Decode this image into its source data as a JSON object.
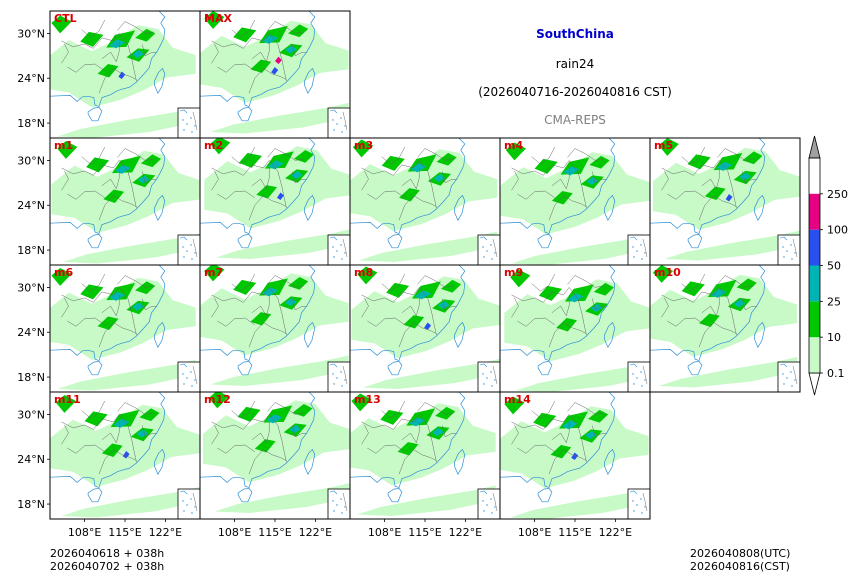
{
  "header": {
    "region": "SouthChina",
    "variable": "rain24",
    "period": "(2026040716-2026040816 CST)",
    "source": "CMA-REPS"
  },
  "panels": [
    "CTL",
    "MAX",
    "m1",
    "m2",
    "m3",
    "m4",
    "m5",
    "m6",
    "m7",
    "m8",
    "m9",
    "m10",
    "m11",
    "m12",
    "m13",
    "m14"
  ],
  "footer": {
    "init_utc": "2026040618  +  038h",
    "init_cst": "2026040702  +  038h",
    "valid_utc": "2026040808(UTC)",
    "valid_cst": "2026040816(CST)"
  },
  "chart_data": {
    "type": "heatmap",
    "title": "SouthChina rain24 (2026040716-2026040816 CST)",
    "x_ticks": [
      "108°E",
      "115°E",
      "122°E"
    ],
    "y_ticks": [
      "30°N",
      "24°N",
      "18°N"
    ],
    "x_range": [
      102,
      128
    ],
    "y_range": [
      16,
      33
    ],
    "colorbar": {
      "levels": [
        "0.1",
        "10",
        "25",
        "50",
        "100",
        "250"
      ],
      "colors": [
        "#c8fac8",
        "#00c800",
        "#00b4b4",
        "#2850f0",
        "#e60082"
      ],
      "under_color": "#ffffff",
      "over_color": "#a0a0a0"
    }
  }
}
